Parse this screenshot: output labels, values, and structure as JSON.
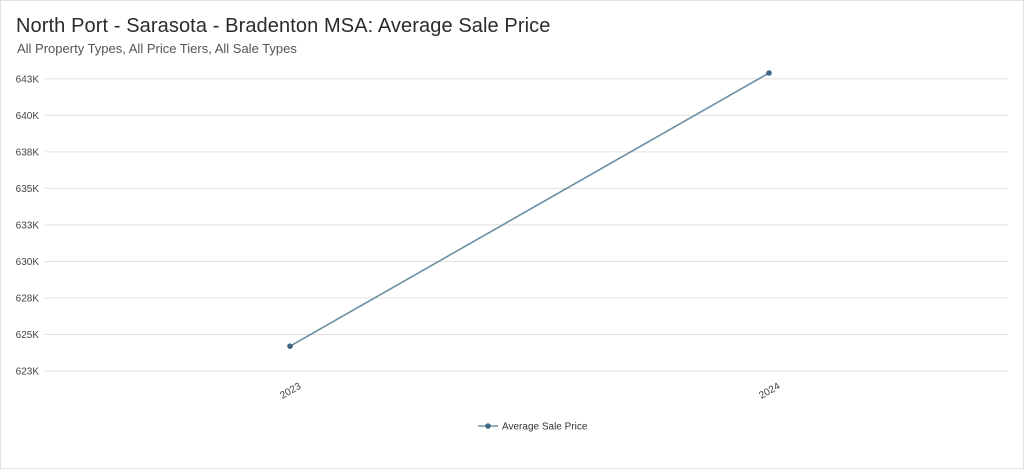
{
  "chart_data": {
    "type": "line",
    "title": "North Port - Sarasota - Bradenton MSA: Average Sale Price",
    "subtitle": "All Property Types, All Price Tiers, All Sale Types",
    "xlabel": "",
    "ylabel": "",
    "categories": [
      "2023",
      "2024"
    ],
    "series": [
      {
        "name": "Average Sale Price",
        "values": [
          624200,
          642900
        ]
      }
    ],
    "ylim": [
      622500,
      642900
    ],
    "yticks": [
      {
        "value": 622500,
        "label": "623K"
      },
      {
        "value": 625000,
        "label": "625K"
      },
      {
        "value": 627500,
        "label": "628K"
      },
      {
        "value": 630000,
        "label": "630K"
      },
      {
        "value": 632500,
        "label": "633K"
      },
      {
        "value": 635000,
        "label": "635K"
      },
      {
        "value": 637500,
        "label": "638K"
      },
      {
        "value": 640000,
        "label": "640K"
      },
      {
        "value": 642500,
        "label": "643K"
      }
    ],
    "grid": true,
    "legend": "bottom-center",
    "colors": {
      "line": "#6b8fa3",
      "marker": "#3f6684",
      "grid": "#e0e0e0"
    }
  }
}
